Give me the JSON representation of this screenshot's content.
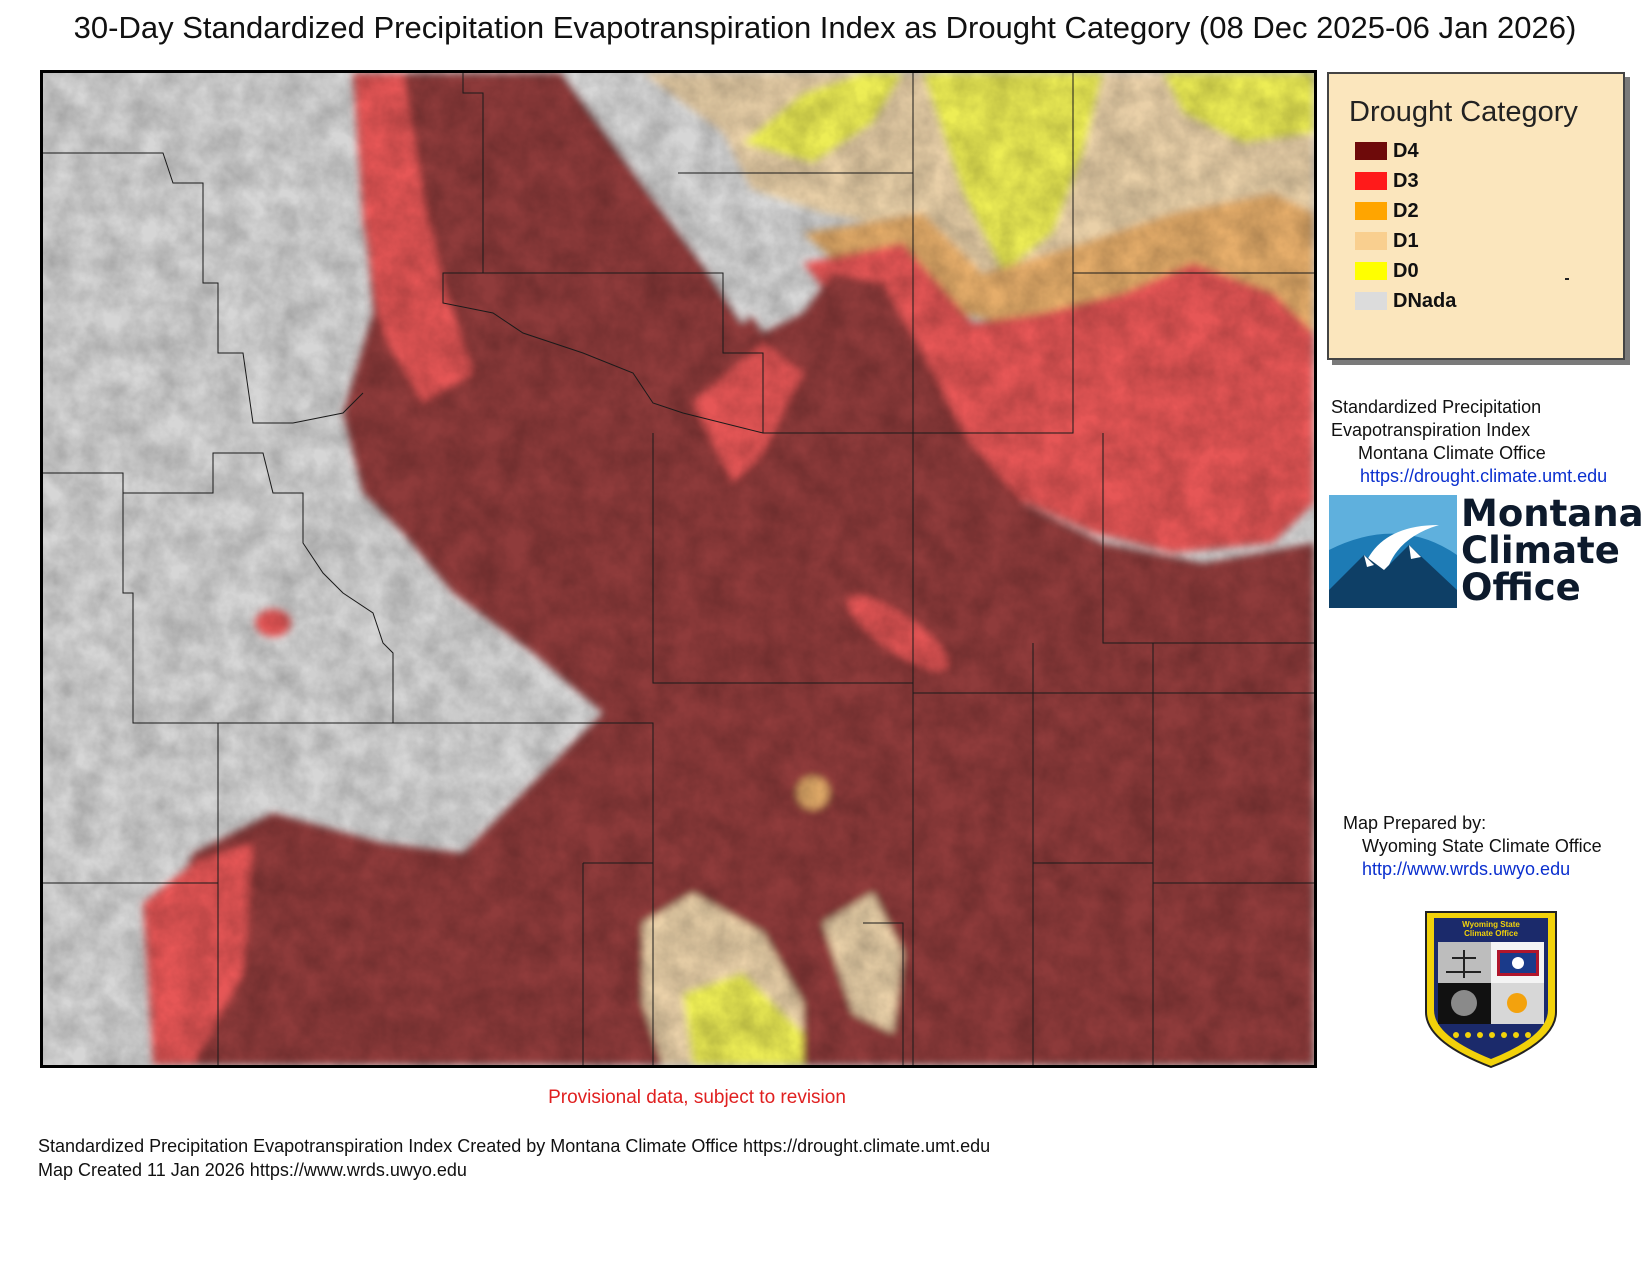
{
  "title": "30-Day Standardized Precipitation Evapotranspiration Index as Drought Category (08 Dec 2025-06 Jan 2026)",
  "legend": {
    "title": "Drought Category",
    "items": [
      {
        "label": "D4",
        "color": "#6e0a0a"
      },
      {
        "label": "D3",
        "color": "#ff1a1a"
      },
      {
        "label": "D2",
        "color": "#ffa500"
      },
      {
        "label": "D1",
        "color": "#f9cf8f"
      },
      {
        "label": "D0",
        "color": "#ffff00"
      },
      {
        "label": "DNada",
        "color": "#dcdcdc"
      }
    ]
  },
  "source_info": {
    "line1": "Standardized Precipitation",
    "line2": "Evapotranspiration Index",
    "line3": "Montana Climate Office",
    "url": "https://drought.climate.umt.edu"
  },
  "mco_logo": {
    "line1": "Montana",
    "line2": "Climate",
    "line3": "Office"
  },
  "prepared_by": {
    "label": "Map Prepared by:",
    "org": "Wyoming State Climate Office",
    "url": "http://www.wrds.uwyo.edu"
  },
  "wsco_logo": {
    "line1": "Wyoming State",
    "line2": "Climate Office"
  },
  "provisional": "Provisional data, subject to revision",
  "footer": {
    "line1": "Standardized Precipitation Evapotranspiration Index Created by Montana Climate Office https://drought.climate.umt.edu",
    "line2": "Map Created 11 Jan 2026 https://www.wrds.uwyo.edu"
  },
  "colors": {
    "d4_map": "#8f3a3a",
    "d3_map": "#e65757",
    "d2_map": "#e5ad6a",
    "d1_map": "#e9d0a8",
    "d0_map": "#eded55",
    "none_map": "#d6d6d6"
  }
}
